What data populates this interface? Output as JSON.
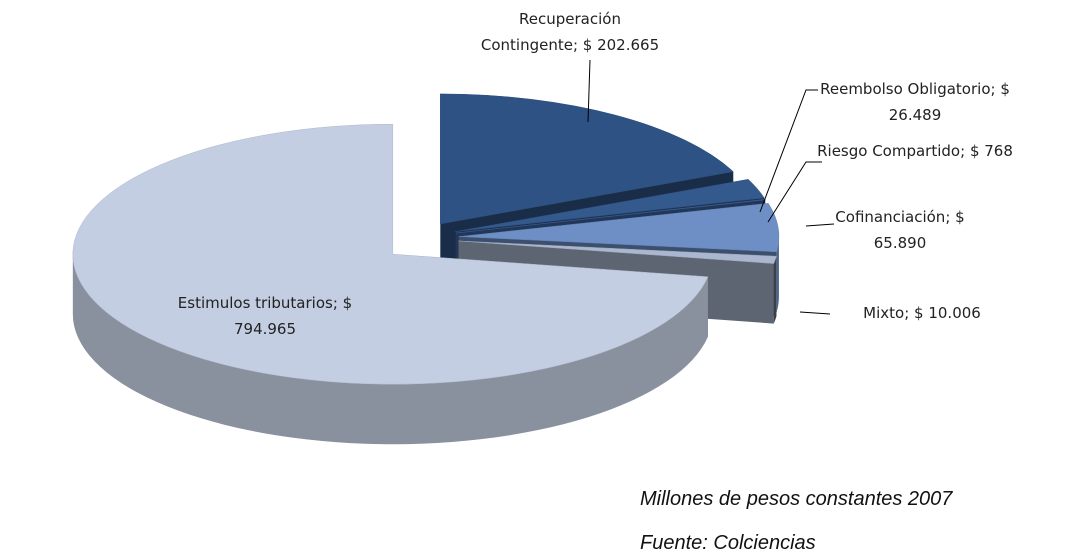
{
  "chart_data": {
    "type": "pie",
    "categories": [
      "Recuperación Contingente",
      "Reembolso Obligatorio",
      "Riesgo Compartido",
      "Cofinanciación",
      "Mixto",
      "Estimulos tributarios"
    ],
    "values": [
      202665,
      26489,
      768,
      65890,
      10006,
      794965
    ],
    "value_labels": [
      "$ 202.665",
      "$ 26.489",
      "$ 768",
      "$ 65.890",
      "$ 10.006",
      "$ 794.965"
    ],
    "label_separator": "; ",
    "colors": [
      "#2e5283",
      "#34598c",
      "#3d64a0",
      "#6d8fc6",
      "#aab7cf",
      "#c3cee2"
    ],
    "notes": [
      "Millones de pesos constantes 2007",
      "Fuente: Colciencias"
    ]
  }
}
